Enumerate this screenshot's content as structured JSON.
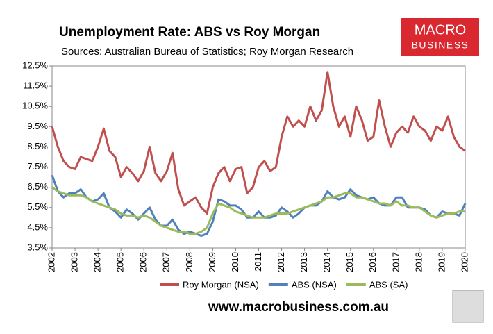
{
  "chart_data": {
    "type": "line",
    "title": "Unemployment Rate: ABS vs Roy Morgan",
    "subtitle": "Sources: Australian Bureau of Statistics; Roy Morgan Research",
    "logo": [
      "MACRO",
      "BUSINESS"
    ],
    "footer": "www.macrobusiness.com.au",
    "x": [
      2002,
      2002.25,
      2002.5,
      2002.75,
      2003,
      2003.25,
      2003.5,
      2003.75,
      2004,
      2004.25,
      2004.5,
      2004.75,
      2005,
      2005.25,
      2005.5,
      2005.75,
      2006,
      2006.25,
      2006.5,
      2006.75,
      2007,
      2007.25,
      2007.5,
      2007.75,
      2008,
      2008.25,
      2008.5,
      2008.75,
      2009,
      2009.25,
      2009.5,
      2009.75,
      2010,
      2010.25,
      2010.5,
      2010.75,
      2011,
      2011.25,
      2011.5,
      2011.75,
      2012,
      2012.25,
      2012.5,
      2012.75,
      2013,
      2013.25,
      2013.5,
      2013.75,
      2014,
      2014.25,
      2014.5,
      2014.75,
      2015,
      2015.25,
      2015.5,
      2015.75,
      2016,
      2016.25,
      2016.5,
      2016.75,
      2017,
      2017.25,
      2017.5,
      2017.75,
      2018,
      2018.25,
      2018.5,
      2018.75,
      2019,
      2019.25,
      2019.5,
      2019.75,
      2020
    ],
    "series": [
      {
        "name": "Roy Morgan (NSA)",
        "color": "#c0504d",
        "values": [
          9.5,
          8.5,
          7.8,
          7.5,
          7.4,
          8.0,
          7.9,
          7.8,
          8.5,
          9.4,
          8.3,
          8.0,
          7.0,
          7.5,
          7.2,
          6.8,
          7.3,
          8.5,
          7.2,
          6.8,
          7.3,
          8.2,
          6.4,
          5.6,
          5.8,
          6.0,
          5.5,
          5.2,
          6.5,
          7.2,
          7.5,
          6.8,
          7.4,
          7.5,
          6.2,
          6.5,
          7.5,
          7.8,
          7.3,
          7.5,
          9.0,
          10.0,
          9.5,
          9.8,
          9.5,
          10.5,
          9.8,
          10.3,
          12.2,
          10.5,
          9.5,
          10.0,
          9.0,
          10.5,
          9.8,
          8.8,
          9.0,
          10.8,
          9.5,
          8.5,
          9.2,
          9.5,
          9.2,
          10.0,
          9.5,
          9.3,
          8.8,
          9.5,
          9.3,
          10.0,
          9.0,
          8.5,
          8.3
        ]
      },
      {
        "name": "ABS (NSA)",
        "color": "#4f81bd",
        "values": [
          7.1,
          6.3,
          6.0,
          6.2,
          6.2,
          6.4,
          6.0,
          5.8,
          5.9,
          6.2,
          5.5,
          5.3,
          5.0,
          5.4,
          5.2,
          4.9,
          5.2,
          5.5,
          4.9,
          4.6,
          4.6,
          4.9,
          4.4,
          4.2,
          4.3,
          4.2,
          4.1,
          4.2,
          4.8,
          5.9,
          5.8,
          5.6,
          5.6,
          5.4,
          5.0,
          5.0,
          5.3,
          5.0,
          5.0,
          5.1,
          5.5,
          5.3,
          5.0,
          5.2,
          5.5,
          5.6,
          5.6,
          5.8,
          6.3,
          6.0,
          5.9,
          6.0,
          6.4,
          6.1,
          6.0,
          5.9,
          6.0,
          5.7,
          5.6,
          5.6,
          6.0,
          6.0,
          5.5,
          5.5,
          5.5,
          5.4,
          5.1,
          5.0,
          5.3,
          5.2,
          5.2,
          5.1,
          5.7
        ]
      },
      {
        "name": "ABS (SA)",
        "color": "#9bbb59",
        "values": [
          6.5,
          6.3,
          6.2,
          6.1,
          6.1,
          6.1,
          6.0,
          5.8,
          5.7,
          5.6,
          5.5,
          5.4,
          5.2,
          5.1,
          5.1,
          5.0,
          5.1,
          5.0,
          4.8,
          4.6,
          4.5,
          4.4,
          4.3,
          4.3,
          4.2,
          4.2,
          4.3,
          4.5,
          5.2,
          5.7,
          5.6,
          5.5,
          5.3,
          5.2,
          5.1,
          5.0,
          5.0,
          5.0,
          5.1,
          5.2,
          5.2,
          5.2,
          5.3,
          5.4,
          5.5,
          5.6,
          5.7,
          5.8,
          6.0,
          6.0,
          6.1,
          6.2,
          6.2,
          6.0,
          6.0,
          5.9,
          5.8,
          5.7,
          5.7,
          5.6,
          5.8,
          5.6,
          5.6,
          5.5,
          5.5,
          5.3,
          5.1,
          5.0,
          5.1,
          5.2,
          5.2,
          5.3,
          5.3
        ]
      }
    ],
    "xlim": [
      2002,
      2020
    ],
    "xticks": [
      2002,
      2003,
      2004,
      2005,
      2006,
      2007,
      2008,
      2009,
      2010,
      2011,
      2012,
      2013,
      2014,
      2015,
      2016,
      2017,
      2018,
      2019,
      2020
    ],
    "ylim": [
      3.5,
      12.5
    ],
    "yticks": [
      {
        "value": 3.5,
        "label": "3.5%"
      },
      {
        "value": 4.5,
        "label": "4.5%"
      },
      {
        "value": 5.5,
        "label": "5.5%"
      },
      {
        "value": 6.5,
        "label": "6.5%"
      },
      {
        "value": 7.5,
        "label": "7.5%"
      },
      {
        "value": 8.5,
        "label": "8.5%"
      },
      {
        "value": 9.5,
        "label": "9.5%"
      },
      {
        "value": 10.5,
        "label": "10.5%"
      },
      {
        "value": 11.5,
        "label": "11.5%"
      },
      {
        "value": 12.5,
        "label": "12.5%"
      }
    ],
    "grid": false,
    "legend": "bottom"
  }
}
